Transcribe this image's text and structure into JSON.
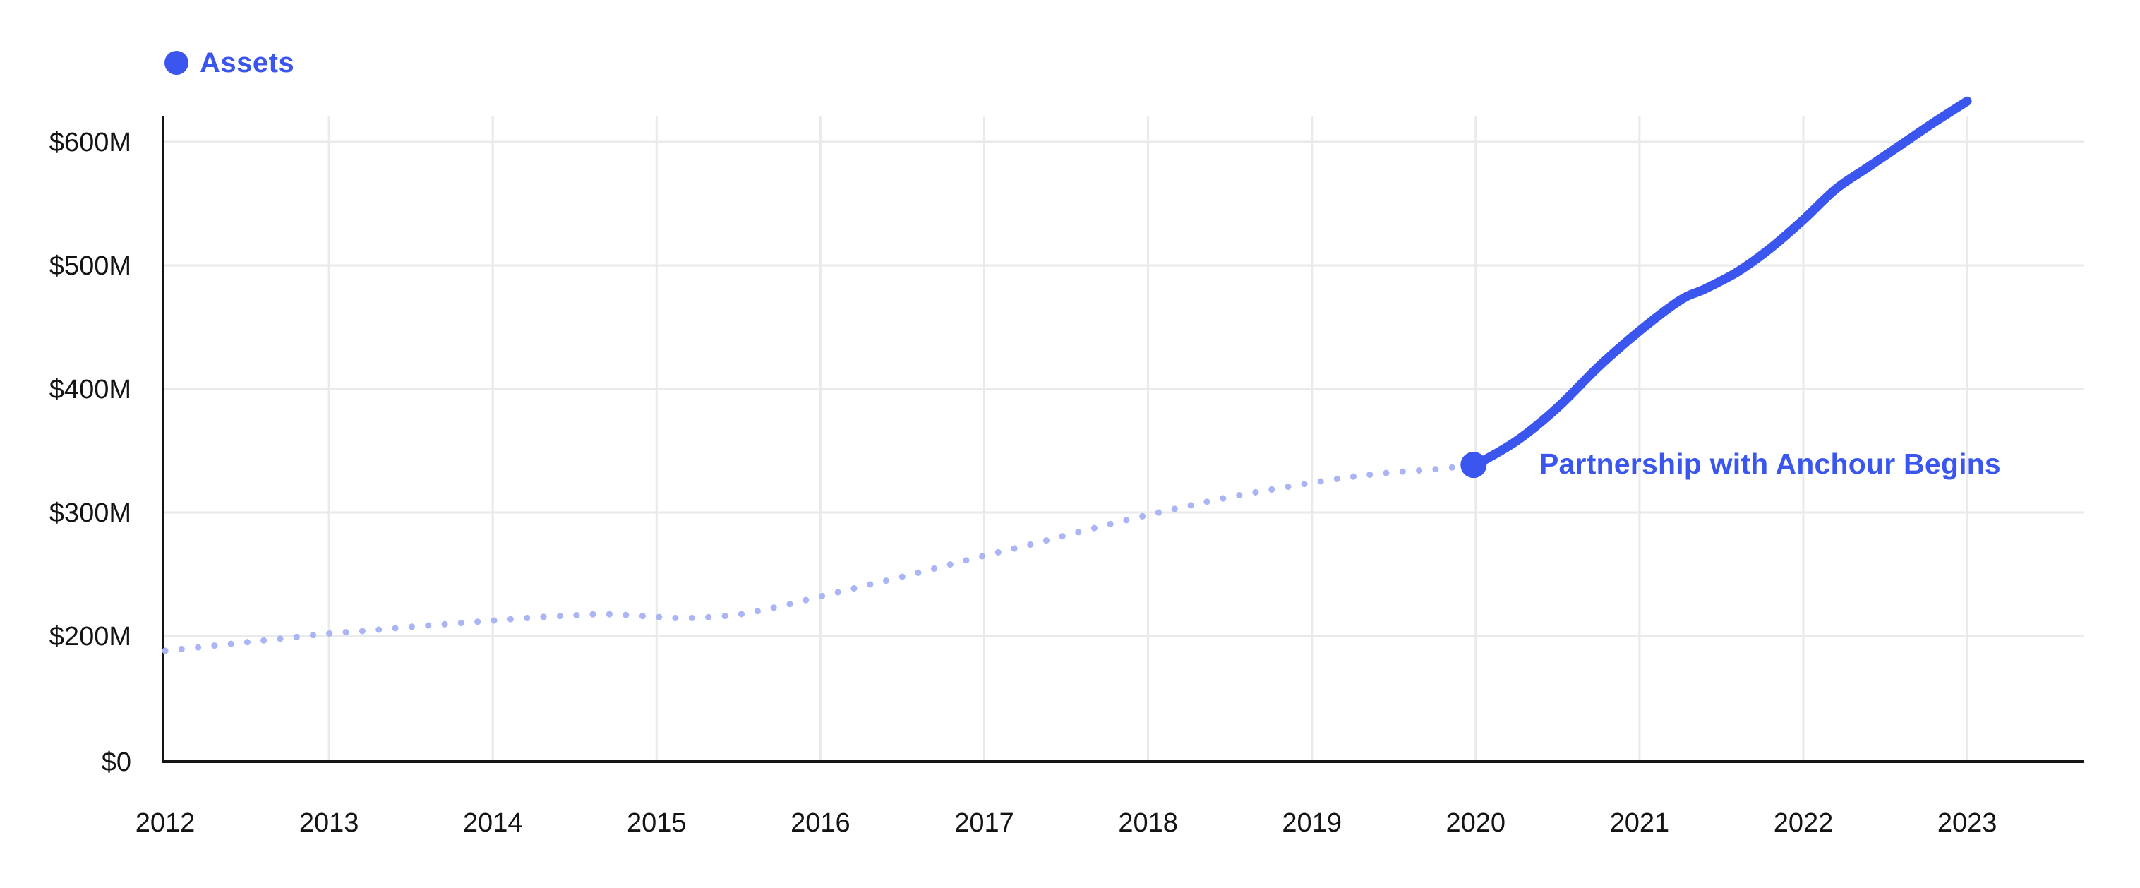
{
  "page": {
    "background": "#FFFFFF"
  },
  "legend": {
    "label": "Assets",
    "dot_color": "#3A56EE",
    "text_color": "#3A56EE"
  },
  "annotation": {
    "text": "Partnership with Anchour Begins",
    "color": "#3A56EE"
  },
  "axes": {
    "x_ticks": [
      "2012",
      "2013",
      "2014",
      "2015",
      "2016",
      "2017",
      "2018",
      "2019",
      "2020",
      "2021",
      "2022",
      "2023"
    ],
    "y_ticks": [
      {
        "label": "$600M",
        "value": 600
      },
      {
        "label": "$500M",
        "value": 500
      },
      {
        "label": "$400M",
        "value": 400
      },
      {
        "label": "$300M",
        "value": 300
      },
      {
        "label": "$200M",
        "value": 200
      },
      {
        "label": "$0",
        "value": 0
      }
    ],
    "tick_color": "#141414",
    "axis_color": "#141414",
    "grid_color": "#EAEAEA"
  },
  "chart_data": {
    "type": "line",
    "title": "",
    "y_unit": "$M (USD millions, read from y-axis labels)",
    "legend_entries": [
      "Assets"
    ],
    "legend_position": "top-left",
    "grid": true,
    "x_range": [
      2012,
      2023
    ],
    "y_axis_tick_labels": [
      "$600M",
      "$500M",
      "$400M",
      "$300M",
      "$200M",
      "$0"
    ],
    "series": [
      {
        "name": "Assets",
        "segment": "2012-2020 pre-partnership",
        "style": "dotted",
        "color": "#A9B5F4",
        "stroke_width": 9,
        "points": [
          [
            2012.0,
            188
          ],
          [
            2012.25,
            191.5
          ],
          [
            2012.5,
            195
          ],
          [
            2012.75,
            198.5
          ],
          [
            2013.0,
            202
          ],
          [
            2013.25,
            204.5
          ],
          [
            2013.5,
            207.5
          ],
          [
            2013.75,
            210
          ],
          [
            2014.0,
            212.5
          ],
          [
            2014.25,
            215
          ],
          [
            2014.5,
            216.8
          ],
          [
            2014.7,
            217.7
          ],
          [
            2015.0,
            215.5
          ],
          [
            2015.2,
            214.5
          ],
          [
            2015.5,
            217.5
          ],
          [
            2015.75,
            224
          ],
          [
            2016.0,
            232
          ],
          [
            2016.25,
            240
          ],
          [
            2016.5,
            248
          ],
          [
            2016.75,
            256.5
          ],
          [
            2017.0,
            265
          ],
          [
            2017.25,
            273
          ],
          [
            2017.5,
            281.5
          ],
          [
            2017.75,
            290
          ],
          [
            2018.0,
            298
          ],
          [
            2018.25,
            305.5
          ],
          [
            2018.5,
            312.5
          ],
          [
            2018.75,
            318.5
          ],
          [
            2019.0,
            324
          ],
          [
            2019.25,
            329
          ],
          [
            2019.5,
            332.5
          ],
          [
            2019.75,
            335
          ],
          [
            2020.0,
            338.5
          ]
        ]
      },
      {
        "name": "Assets",
        "segment": "2020-2023 partnership with Anchour",
        "style": "solid",
        "color": "#3A56EE",
        "stroke_width": 13,
        "points": [
          [
            2020.0,
            338.5
          ],
          [
            2020.25,
            358
          ],
          [
            2020.5,
            385
          ],
          [
            2020.75,
            418
          ],
          [
            2021.0,
            447
          ],
          [
            2021.25,
            472
          ],
          [
            2021.4,
            481
          ],
          [
            2021.6,
            495
          ],
          [
            2021.8,
            514
          ],
          [
            2022.0,
            537
          ],
          [
            2022.2,
            562
          ],
          [
            2022.4,
            580
          ],
          [
            2022.6,
            598
          ],
          [
            2022.8,
            616
          ],
          [
            2023.0,
            633
          ]
        ]
      }
    ],
    "marker": {
      "x": 2020,
      "y": 338.5,
      "radius": 18.5,
      "color": "#3A56EE",
      "label": "Partnership with Anchour Begins"
    }
  }
}
